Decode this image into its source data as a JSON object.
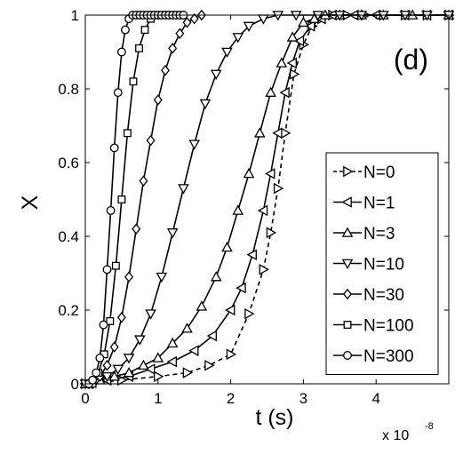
{
  "chart_data": {
    "type": "line",
    "panel_label": "(d)",
    "xlabel": "t (s)",
    "ylabel": "X",
    "x_multiplier": {
      "prefix": "x 10",
      "exponent": "-8"
    },
    "xlim": [
      0,
      5
    ],
    "ylim": [
      0,
      1
    ],
    "xticks": [
      "0",
      "1",
      "2",
      "3",
      "4"
    ],
    "yticks": [
      "0",
      "0.2",
      "0.4",
      "0.6",
      "0.8",
      "1"
    ],
    "grid": false,
    "legend_position": "lower right",
    "series": [
      {
        "name": "N=0",
        "marker": "triangle-right",
        "dash": "dashed",
        "x": [
          0.0,
          0.5,
          1.0,
          1.4,
          1.7,
          2.0,
          2.25,
          2.45,
          2.55,
          2.65,
          2.75,
          2.87,
          3.0,
          3.12,
          3.25,
          3.4,
          3.6,
          3.85,
          4.1,
          4.4,
          4.7,
          5.0
        ],
        "y": [
          0.0,
          0.01,
          0.02,
          0.03,
          0.05,
          0.08,
          0.19,
          0.31,
          0.41,
          0.53,
          0.68,
          0.84,
          0.92,
          0.97,
          0.99,
          1.0,
          1.0,
          1.0,
          1.0,
          1.0,
          1.0,
          1.0
        ]
      },
      {
        "name": "N=1",
        "marker": "triangle-left",
        "dash": "solid",
        "x": [
          0.0,
          0.3,
          0.6,
          0.9,
          1.2,
          1.5,
          1.75,
          2.0,
          2.15,
          2.3,
          2.45,
          2.55,
          2.65,
          2.75,
          2.85,
          2.95,
          3.1,
          3.25,
          3.4,
          3.7,
          4.0,
          4.4,
          4.7,
          5.0
        ],
        "y": [
          0.0,
          0.01,
          0.02,
          0.04,
          0.06,
          0.09,
          0.13,
          0.2,
          0.26,
          0.35,
          0.47,
          0.57,
          0.68,
          0.79,
          0.87,
          0.93,
          0.97,
          0.99,
          1.0,
          1.0,
          1.0,
          1.0,
          1.0,
          1.0
        ]
      },
      {
        "name": "N=3",
        "marker": "triangle-up",
        "dash": "solid",
        "x": [
          0.0,
          0.2,
          0.4,
          0.6,
          0.8,
          1.0,
          1.2,
          1.4,
          1.6,
          1.8,
          1.95,
          2.1,
          2.25,
          2.4,
          2.55,
          2.7,
          2.85,
          3.0,
          3.15,
          3.3,
          3.5,
          3.8,
          4.1,
          4.5,
          5.0
        ],
        "y": [
          0.0,
          0.01,
          0.02,
          0.03,
          0.05,
          0.07,
          0.11,
          0.15,
          0.21,
          0.29,
          0.37,
          0.47,
          0.57,
          0.68,
          0.79,
          0.87,
          0.94,
          0.98,
          0.99,
          1.0,
          1.0,
          1.0,
          1.0,
          1.0,
          1.0
        ]
      },
      {
        "name": "N=10",
        "marker": "triangle-down",
        "dash": "solid",
        "x": [
          0.0,
          0.15,
          0.3,
          0.45,
          0.6,
          0.75,
          0.9,
          1.05,
          1.2,
          1.35,
          1.5,
          1.65,
          1.8,
          1.95,
          2.1,
          2.25,
          2.45,
          2.65,
          2.9,
          3.2,
          3.5,
          3.8,
          4.1,
          4.4,
          4.7,
          5.0
        ],
        "y": [
          0.0,
          0.01,
          0.02,
          0.04,
          0.07,
          0.12,
          0.19,
          0.29,
          0.41,
          0.53,
          0.65,
          0.76,
          0.84,
          0.9,
          0.94,
          0.97,
          0.99,
          1.0,
          1.0,
          1.0,
          1.0,
          1.0,
          1.0,
          1.0,
          1.0,
          1.0
        ]
      },
      {
        "name": "N=30",
        "marker": "diamond",
        "dash": "solid",
        "x": [
          0.1,
          0.2,
          0.3,
          0.4,
          0.5,
          0.6,
          0.7,
          0.8,
          0.9,
          1.0,
          1.1,
          1.2,
          1.3,
          1.4,
          1.5,
          1.6
        ],
        "y": [
          0.0,
          0.02,
          0.05,
          0.1,
          0.18,
          0.29,
          0.42,
          0.55,
          0.66,
          0.77,
          0.85,
          0.91,
          0.95,
          0.98,
          0.99,
          1.0
        ]
      },
      {
        "name": "N=100",
        "marker": "square",
        "dash": "solid",
        "x": [
          0.1,
          0.18,
          0.26,
          0.34,
          0.42,
          0.5,
          0.58,
          0.66,
          0.74,
          0.82,
          0.9,
          1.0
        ],
        "y": [
          0.0,
          0.03,
          0.08,
          0.17,
          0.32,
          0.5,
          0.68,
          0.82,
          0.91,
          0.96,
          0.99,
          1.0
        ]
      },
      {
        "name": "N=300",
        "marker": "circle",
        "dash": "solid",
        "x": [
          0.05,
          0.1,
          0.15,
          0.2,
          0.25,
          0.3,
          0.35,
          0.4,
          0.45,
          0.5,
          0.55,
          0.6,
          0.65,
          0.7,
          0.75,
          0.8,
          0.85,
          0.9,
          0.95,
          1.0,
          1.05,
          1.1,
          1.15,
          1.2,
          1.25,
          1.3,
          1.35
        ],
        "y": [
          0.0,
          0.01,
          0.03,
          0.07,
          0.16,
          0.31,
          0.47,
          0.64,
          0.79,
          0.9,
          0.96,
          0.99,
          1.0,
          1.0,
          1.0,
          1.0,
          1.0,
          1.0,
          1.0,
          1.0,
          1.0,
          1.0,
          1.0,
          1.0,
          1.0,
          1.0,
          1.0
        ]
      }
    ]
  }
}
